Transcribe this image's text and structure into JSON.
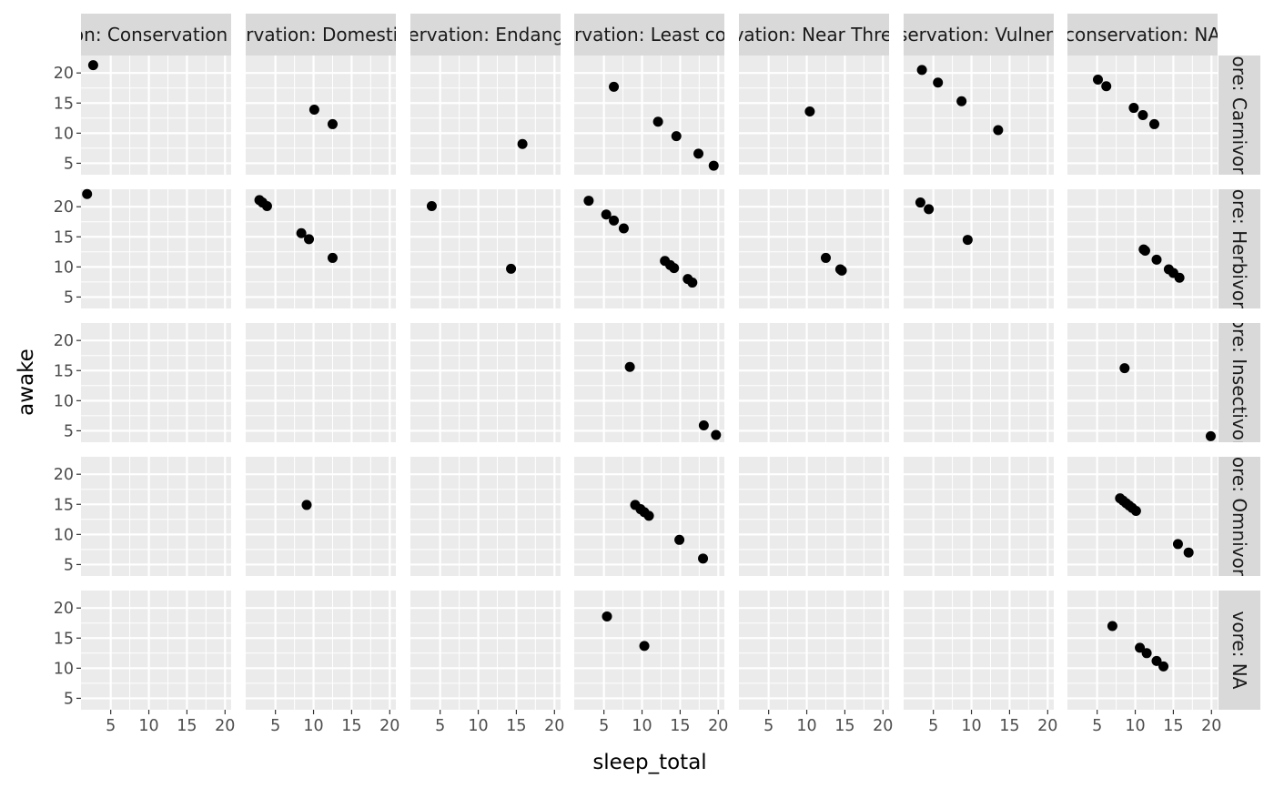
{
  "chart_data": {
    "type": "scatter",
    "xlabel": "sleep_total",
    "ylabel": "awake",
    "xlim": [
      1.1,
      20.8
    ],
    "ylim": [
      3.1,
      22.9
    ],
    "x_ticks": [
      5,
      10,
      15,
      20
    ],
    "y_ticks": [
      5,
      10,
      15,
      20
    ],
    "grid": true,
    "col_facets": [
      "conservation: Conservation Dependent",
      "conservation: Domesticated",
      "conservation: Endangered",
      "conservation: Least concern",
      "conservation: Near Threatened",
      "conservation: Vulnerable",
      "conservation: NA"
    ],
    "row_facets": [
      "vore: Carnivore",
      "vore: Herbivore",
      "vore: Insectivore",
      "vore: Omnivore",
      "vore: NA"
    ],
    "panels": [
      {
        "row": 0,
        "col": 0,
        "points": [
          [
            2.7,
            21.3
          ]
        ]
      },
      {
        "row": 0,
        "col": 1,
        "points": [
          [
            10.1,
            13.9
          ],
          [
            12.5,
            11.5
          ]
        ]
      },
      {
        "row": 0,
        "col": 2,
        "points": [
          [
            15.8,
            8.2
          ]
        ]
      },
      {
        "row": 0,
        "col": 3,
        "points": [
          [
            6.3,
            17.7
          ],
          [
            12.1,
            11.9
          ],
          [
            14.5,
            9.5
          ],
          [
            17.4,
            6.6
          ],
          [
            19.4,
            4.6
          ]
        ]
      },
      {
        "row": 0,
        "col": 4,
        "points": [
          [
            10.4,
            13.6
          ]
        ]
      },
      {
        "row": 0,
        "col": 5,
        "points": [
          [
            3.5,
            20.5
          ],
          [
            5.6,
            18.4
          ],
          [
            8.7,
            15.3
          ],
          [
            13.5,
            10.5
          ]
        ]
      },
      {
        "row": 0,
        "col": 6,
        "points": [
          [
            5.1,
            18.9
          ],
          [
            6.2,
            17.8
          ],
          [
            9.8,
            14.2
          ],
          [
            11.0,
            13.0
          ],
          [
            12.5,
            11.5
          ]
        ]
      },
      {
        "row": 1,
        "col": 0,
        "points": [
          [
            1.9,
            22.1
          ]
        ]
      },
      {
        "row": 1,
        "col": 1,
        "points": [
          [
            2.9,
            21.1
          ],
          [
            3.3,
            20.7
          ],
          [
            3.9,
            20.1
          ],
          [
            8.4,
            15.6
          ],
          [
            9.4,
            14.6
          ],
          [
            12.5,
            11.5
          ]
        ]
      },
      {
        "row": 1,
        "col": 2,
        "points": [
          [
            3.9,
            20.1
          ],
          [
            14.3,
            9.7
          ]
        ]
      },
      {
        "row": 1,
        "col": 3,
        "points": [
          [
            3.0,
            21.0
          ],
          [
            5.3,
            18.7
          ],
          [
            6.3,
            17.7
          ],
          [
            7.6,
            16.4
          ],
          [
            13.0,
            11.0
          ],
          [
            13.7,
            10.3
          ],
          [
            14.2,
            9.8
          ],
          [
            16.0,
            8.0
          ],
          [
            16.6,
            7.4
          ]
        ]
      },
      {
        "row": 1,
        "col": 4,
        "points": [
          [
            12.5,
            11.5
          ],
          [
            14.4,
            9.6
          ],
          [
            14.6,
            9.4
          ]
        ]
      },
      {
        "row": 1,
        "col": 5,
        "points": [
          [
            3.3,
            20.7
          ],
          [
            4.4,
            19.6
          ],
          [
            9.5,
            14.5
          ]
        ]
      },
      {
        "row": 1,
        "col": 6,
        "points": [
          [
            11.1,
            12.9
          ],
          [
            11.3,
            12.7
          ],
          [
            12.8,
            11.2
          ],
          [
            14.4,
            9.6
          ],
          [
            15.0,
            9.0
          ],
          [
            15.8,
            8.2
          ]
        ]
      },
      {
        "row": 2,
        "col": 3,
        "points": [
          [
            8.4,
            15.6
          ],
          [
            18.1,
            5.9
          ],
          [
            19.7,
            4.3
          ]
        ]
      },
      {
        "row": 2,
        "col": 6,
        "points": [
          [
            8.6,
            15.4
          ],
          [
            19.9,
            4.1
          ]
        ]
      },
      {
        "row": 3,
        "col": 1,
        "points": [
          [
            9.1,
            14.9
          ]
        ]
      },
      {
        "row": 3,
        "col": 3,
        "points": [
          [
            9.1,
            14.9
          ],
          [
            9.8,
            14.2
          ],
          [
            10.3,
            13.7
          ],
          [
            10.9,
            13.1
          ],
          [
            14.9,
            9.1
          ],
          [
            18.0,
            6.0
          ]
        ]
      },
      {
        "row": 3,
        "col": 6,
        "points": [
          [
            8.0,
            16.0
          ],
          [
            8.4,
            15.6
          ],
          [
            8.8,
            15.2
          ],
          [
            9.2,
            14.8
          ],
          [
            9.6,
            14.4
          ],
          [
            10.1,
            13.9
          ],
          [
            15.6,
            8.4
          ],
          [
            17.0,
            7.0
          ]
        ]
      },
      {
        "row": 4,
        "col": 3,
        "points": [
          [
            5.4,
            18.6
          ],
          [
            10.3,
            13.7
          ]
        ]
      },
      {
        "row": 4,
        "col": 6,
        "points": [
          [
            7.0,
            17.0
          ],
          [
            10.6,
            13.4
          ],
          [
            11.5,
            12.5
          ],
          [
            12.8,
            11.2
          ],
          [
            13.7,
            10.3
          ]
        ]
      }
    ]
  }
}
